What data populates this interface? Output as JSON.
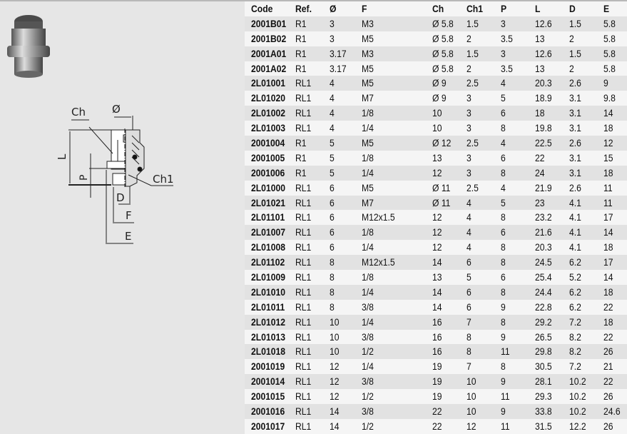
{
  "drawing": {
    "labels": {
      "ch": "Ch",
      "dia": "Ø",
      "l": "L",
      "p": "P",
      "ch1": "Ch1",
      "d": "D",
      "f": "F",
      "e": "E"
    }
  },
  "table": {
    "headers": [
      "Code",
      "Ref.",
      "Ø",
      "F",
      "Ch",
      "Ch1",
      "P",
      "L",
      "D",
      "E"
    ],
    "rows": [
      [
        "2001B01",
        "R1",
        "3",
        "M3",
        "Ø 5.8",
        "1.5",
        "3",
        "12.6",
        "1.5",
        "5.8"
      ],
      [
        "2001B02",
        "R1",
        "3",
        "M5",
        "Ø 5.8",
        "2",
        "3.5",
        "13",
        "2",
        "5.8"
      ],
      [
        "2001A01",
        "R1",
        "3.17",
        "M3",
        "Ø 5.8",
        "1.5",
        "3",
        "12.6",
        "1.5",
        "5.8"
      ],
      [
        "2001A02",
        "R1",
        "3.17",
        "M5",
        "Ø 5.8",
        "2",
        "3.5",
        "13",
        "2",
        "5.8"
      ],
      [
        "2L01001",
        "RL1",
        "4",
        "M5",
        "Ø 9",
        "2.5",
        "4",
        "20.3",
        "2.6",
        "9"
      ],
      [
        "2L01020",
        "RL1",
        "4",
        "M7",
        "Ø 9",
        "3",
        "5",
        "18.9",
        "3.1",
        "9.8"
      ],
      [
        "2L01002",
        "RL1",
        "4",
        "1/8",
        "10",
        "3",
        "6",
        "18",
        "3.1",
        "14"
      ],
      [
        "2L01003",
        "RL1",
        "4",
        "1/4",
        "10",
        "3",
        "8",
        "19.8",
        "3.1",
        "18"
      ],
      [
        "2001004",
        "R1",
        "5",
        "M5",
        "Ø 12",
        "2.5",
        "4",
        "22.5",
        "2.6",
        "12"
      ],
      [
        "2001005",
        "R1",
        "5",
        "1/8",
        "13",
        "3",
        "6",
        "22",
        "3.1",
        "15"
      ],
      [
        "2001006",
        "R1",
        "5",
        "1/4",
        "12",
        "3",
        "8",
        "24",
        "3.1",
        "18"
      ],
      [
        "2L01000",
        "RL1",
        "6",
        "M5",
        "Ø 11",
        "2.5",
        "4",
        "21.9",
        "2.6",
        "11"
      ],
      [
        "2L01021",
        "RL1",
        "6",
        "M7",
        "Ø 11",
        "4",
        "5",
        "23",
        "4.1",
        "11"
      ],
      [
        "2L01101",
        "RL1",
        "6",
        "M12x1.5",
        "12",
        "4",
        "8",
        "23.2",
        "4.1",
        "17"
      ],
      [
        "2L01007",
        "RL1",
        "6",
        "1/8",
        "12",
        "4",
        "6",
        "21.6",
        "4.1",
        "14"
      ],
      [
        "2L01008",
        "RL1",
        "6",
        "1/4",
        "12",
        "4",
        "8",
        "20.3",
        "4.1",
        "18"
      ],
      [
        "2L01102",
        "RL1",
        "8",
        "M12x1.5",
        "14",
        "6",
        "8",
        "24.5",
        "6.2",
        "17"
      ],
      [
        "2L01009",
        "RL1",
        "8",
        "1/8",
        "13",
        "5",
        "6",
        "25.4",
        "5.2",
        "14"
      ],
      [
        "2L01010",
        "RL1",
        "8",
        "1/4",
        "14",
        "6",
        "8",
        "24.4",
        "6.2",
        "18"
      ],
      [
        "2L01011",
        "RL1",
        "8",
        "3/8",
        "14",
        "6",
        "9",
        "22.8",
        "6.2",
        "22"
      ],
      [
        "2L01012",
        "RL1",
        "10",
        "1/4",
        "16",
        "7",
        "8",
        "29.2",
        "7.2",
        "18"
      ],
      [
        "2L01013",
        "RL1",
        "10",
        "3/8",
        "16",
        "8",
        "9",
        "26.5",
        "8.2",
        "22"
      ],
      [
        "2L01018",
        "RL1",
        "10",
        "1/2",
        "16",
        "8",
        "11",
        "29.8",
        "8.2",
        "26"
      ],
      [
        "2001019",
        "RL1",
        "12",
        "1/4",
        "19",
        "7",
        "8",
        "30.5",
        "7.2",
        "21"
      ],
      [
        "2001014",
        "RL1",
        "12",
        "3/8",
        "19",
        "10",
        "9",
        "28.1",
        "10.2",
        "22"
      ],
      [
        "2001015",
        "RL1",
        "12",
        "1/2",
        "19",
        "10",
        "11",
        "29.3",
        "10.2",
        "26"
      ],
      [
        "2001016",
        "RL1",
        "14",
        "3/8",
        "22",
        "10",
        "9",
        "33.8",
        "10.2",
        "24.6"
      ],
      [
        "2001017",
        "RL1",
        "14",
        "1/2",
        "22",
        "12",
        "11",
        "31.5",
        "12.2",
        "26"
      ]
    ]
  }
}
